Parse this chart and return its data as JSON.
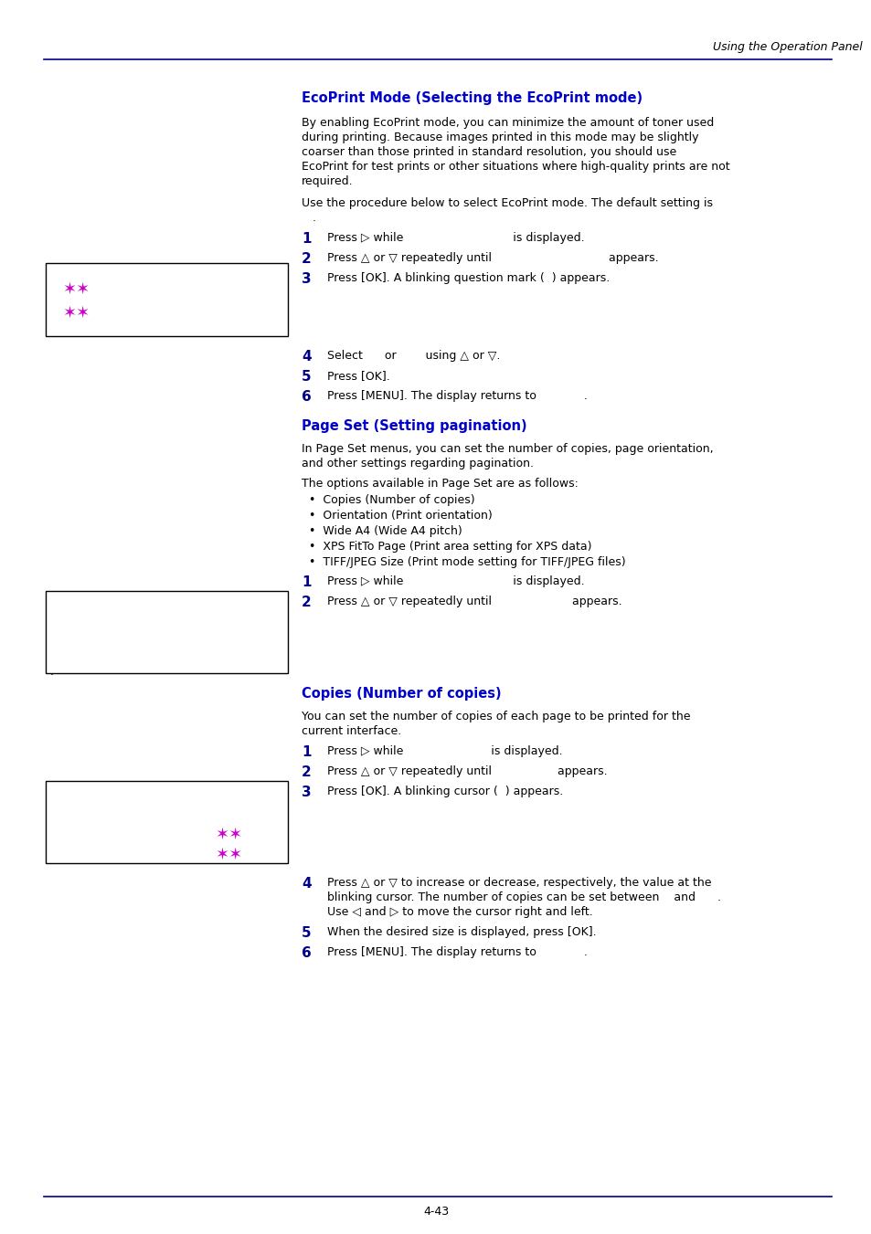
{
  "page_bg": "#ffffff",
  "header_text": "Using the Operation Panel",
  "divider_color": "#00008B",
  "footer_text": "4-43",
  "title1": "EcoPrint Mode (Selecting the EcoPrint mode)",
  "title2": "Page Set (Setting pagination)",
  "title3": "Copies (Number of copies)",
  "title_color": "#0000CC",
  "body_color": "#000000",
  "step_color": "#00008B",
  "magenta": "#CC00CC",
  "figw": 9.54,
  "figh": 13.51,
  "dpi": 100
}
